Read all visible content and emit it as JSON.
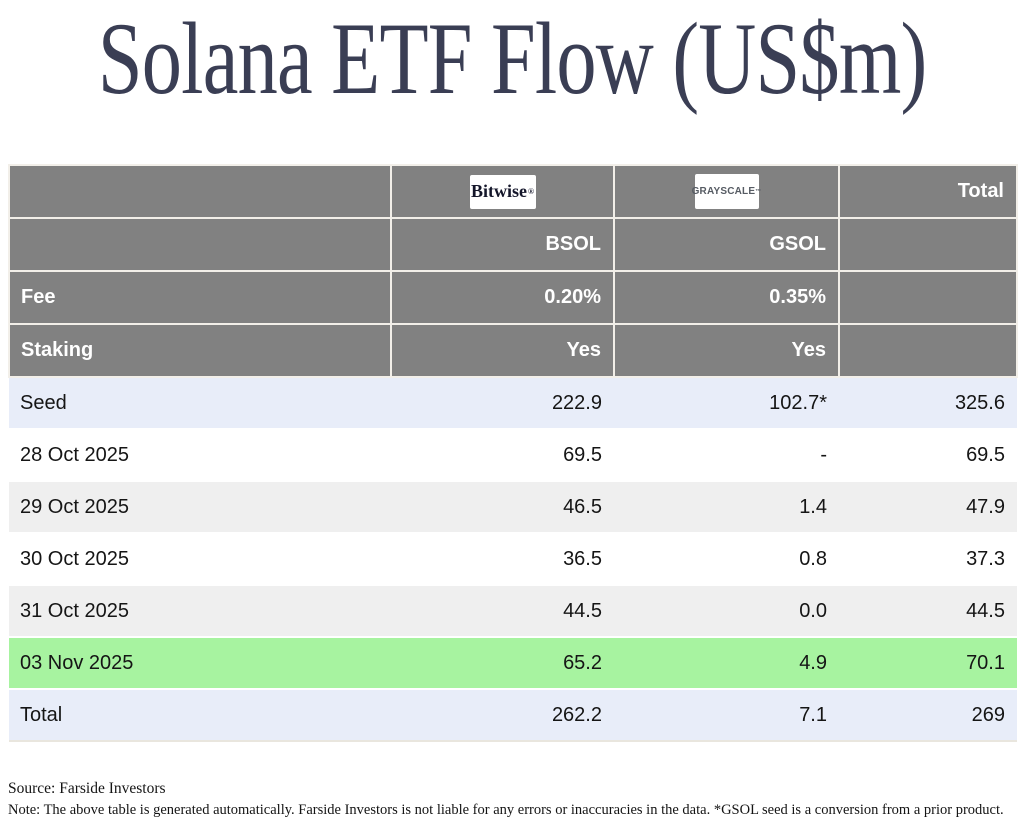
{
  "title": "Solana ETF Flow (US$m)",
  "colors": {
    "title_text": "#3a3e54",
    "header_bg": "#818181",
    "header_text": "#ffffff",
    "header_border": "#f2efe9",
    "row_subtotal_bg": "#e8edf9",
    "row_alt_bg": "#efefef",
    "row_highlight_bg": "#a7f3a0",
    "body_text": "#151515"
  },
  "table": {
    "total_header": "Total",
    "bitwise_logo": {
      "text": "Bitwise",
      "mark": "®"
    },
    "grayscale_logo": {
      "text": "GRAYSCALE",
      "mark": "™"
    },
    "tickers": {
      "bitwise": "BSOL",
      "grayscale": "GSOL"
    },
    "fee_label": "Fee",
    "fee_bitwise": "0.20%",
    "fee_grayscale": "0.35%",
    "staking_label": "Staking",
    "staking_bitwise": "Yes",
    "staking_grayscale": "Yes",
    "rows": [
      {
        "label": "Seed",
        "bsol": "222.9",
        "gsol": "102.7*",
        "total": "325.6"
      },
      {
        "label": "28 Oct 2025",
        "bsol": "69.5",
        "gsol": "-",
        "total": "69.5"
      },
      {
        "label": "29 Oct 2025",
        "bsol": "46.5",
        "gsol": "1.4",
        "total": "47.9"
      },
      {
        "label": "30 Oct 2025",
        "bsol": "36.5",
        "gsol": "0.8",
        "total": "37.3"
      },
      {
        "label": "31 Oct 2025",
        "bsol": "44.5",
        "gsol": "0.0",
        "total": "44.5"
      },
      {
        "label": "03 Nov 2025",
        "bsol": "65.2",
        "gsol": "4.9",
        "total": "70.1"
      },
      {
        "label": "Total",
        "bsol": "262.2",
        "gsol": "7.1",
        "total": "269"
      }
    ]
  },
  "footer": {
    "source": "Source: Farside Investors",
    "note": "Note: The above table is generated automatically. Farside Investors is not liable for any errors or inaccuracies in the data. *GSOL seed is a conversion from a prior product."
  },
  "chart_data": {
    "type": "table",
    "title": "Solana ETF Flow (US$m)",
    "columns": [
      "",
      "Bitwise BSOL",
      "Grayscale GSOL",
      "Total"
    ],
    "fund_meta": {
      "fee": {
        "BSOL": "0.20%",
        "GSOL": "0.35%"
      },
      "staking": {
        "BSOL": "Yes",
        "GSOL": "Yes"
      }
    },
    "rows": [
      {
        "label": "Seed",
        "BSOL": 222.9,
        "GSOL": "102.7*",
        "Total": 325.6
      },
      {
        "label": "28 Oct 2025",
        "BSOL": 69.5,
        "GSOL": null,
        "Total": 69.5
      },
      {
        "label": "29 Oct 2025",
        "BSOL": 46.5,
        "GSOL": 1.4,
        "Total": 47.9
      },
      {
        "label": "30 Oct 2025",
        "BSOL": 36.5,
        "GSOL": 0.8,
        "Total": 37.3
      },
      {
        "label": "31 Oct 2025",
        "BSOL": 44.5,
        "GSOL": 0.0,
        "Total": 44.5
      },
      {
        "label": "03 Nov 2025",
        "BSOL": 65.2,
        "GSOL": 4.9,
        "Total": 70.1
      },
      {
        "label": "Total",
        "BSOL": 262.2,
        "GSOL": 7.1,
        "Total": 269
      }
    ],
    "highlighted_row": "03 Nov 2025",
    "source": "Farside Investors"
  }
}
